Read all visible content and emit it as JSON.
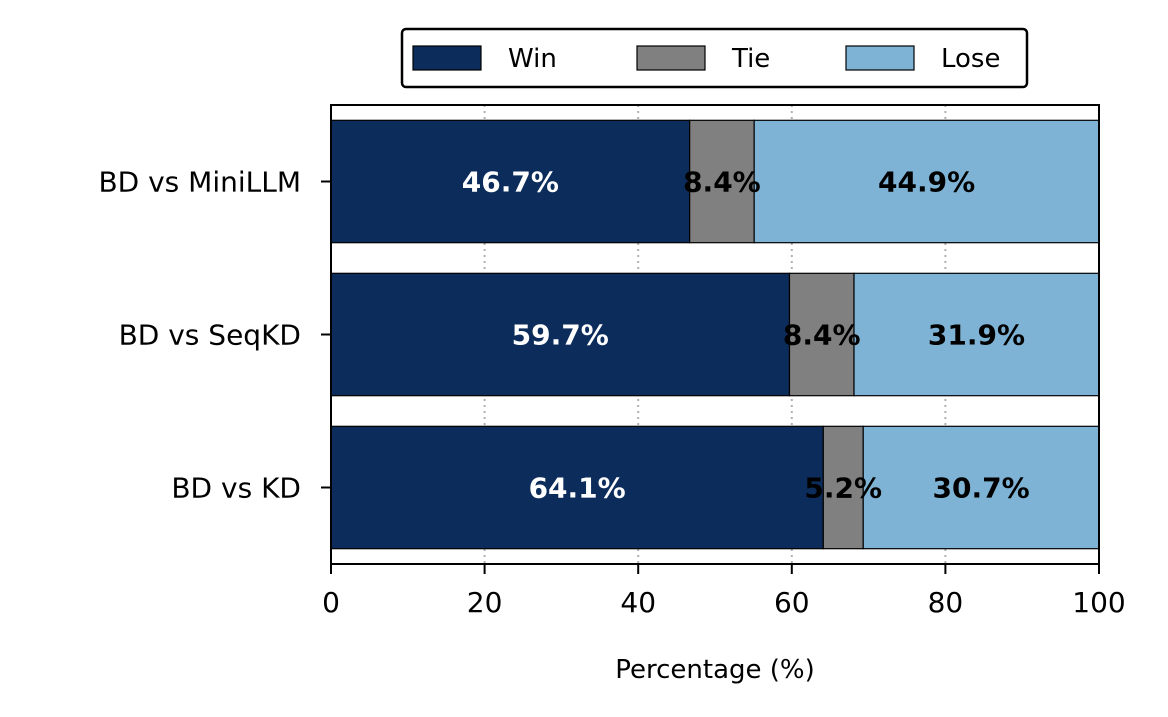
{
  "chart_data": {
    "type": "bar",
    "orientation": "horizontal",
    "stacked": true,
    "categories": [
      "BD vs MiniLLM",
      "BD vs SeqKD",
      "BD vs KD"
    ],
    "series": [
      {
        "name": "Win",
        "color": "#0c2d5c",
        "label_color": "#ffffff",
        "values": [
          46.7,
          59.7,
          64.1
        ]
      },
      {
        "name": "Tie",
        "color": "#808080",
        "label_color": "#000000",
        "values": [
          8.4,
          8.4,
          5.2
        ]
      },
      {
        "name": "Lose",
        "color": "#7fb3d5",
        "label_color": "#000000",
        "values": [
          44.9,
          31.9,
          30.7
        ]
      }
    ],
    "value_labels": [
      [
        "46.7%",
        "59.7%",
        "64.1%"
      ],
      [
        "8.4%",
        "8.4%",
        "5.2%"
      ],
      [
        "44.9%",
        "31.9%",
        "30.7%"
      ]
    ],
    "xlabel": "Percentage (%)",
    "ylabel": "",
    "xlim": [
      0,
      100
    ],
    "xticks": [
      "0",
      "20",
      "40",
      "60",
      "80",
      "100"
    ],
    "grid": "vertical dotted",
    "legend_position": "top-center"
  }
}
